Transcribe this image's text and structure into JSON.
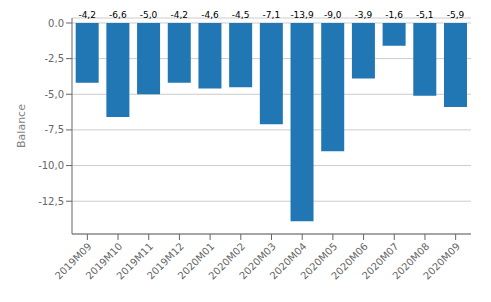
{
  "chart_data": {
    "type": "bar",
    "categories": [
      "2019M09",
      "2019M10",
      "2019M11",
      "2019M12",
      "2020M01",
      "2020M02",
      "2020M03",
      "2020M04",
      "2020M05",
      "2020M06",
      "2020M07",
      "2020M08",
      "2020M09"
    ],
    "values": [
      -4.2,
      -6.6,
      -5.0,
      -4.2,
      -4.6,
      -4.5,
      -7.1,
      -13.9,
      -9.0,
      -3.9,
      -1.6,
      -5.1,
      -5.9
    ],
    "value_labels": [
      "-4,2",
      "-6,6",
      "-5,0",
      "-4,2",
      "-4,6",
      "-4,5",
      "-7,1",
      "-13,9",
      "-9,0",
      "-3,9",
      "-1,6",
      "-5,1",
      "-5,9"
    ],
    "data_labels": true,
    "color": "#2176b4",
    "ylabel": "Balance",
    "ylim": [
      -14.8,
      0.35
    ],
    "yticks": [
      {
        "value": 0.0,
        "label": "0.0"
      },
      {
        "value": -2.5,
        "label": "-2,5"
      },
      {
        "value": -5.0,
        "label": "-5,0"
      },
      {
        "value": -7.5,
        "label": "-7,5"
      },
      {
        "value": -10.0,
        "label": "-10,0"
      },
      {
        "value": -12.5,
        "label": "-12,5"
      }
    ],
    "grid": true
  }
}
